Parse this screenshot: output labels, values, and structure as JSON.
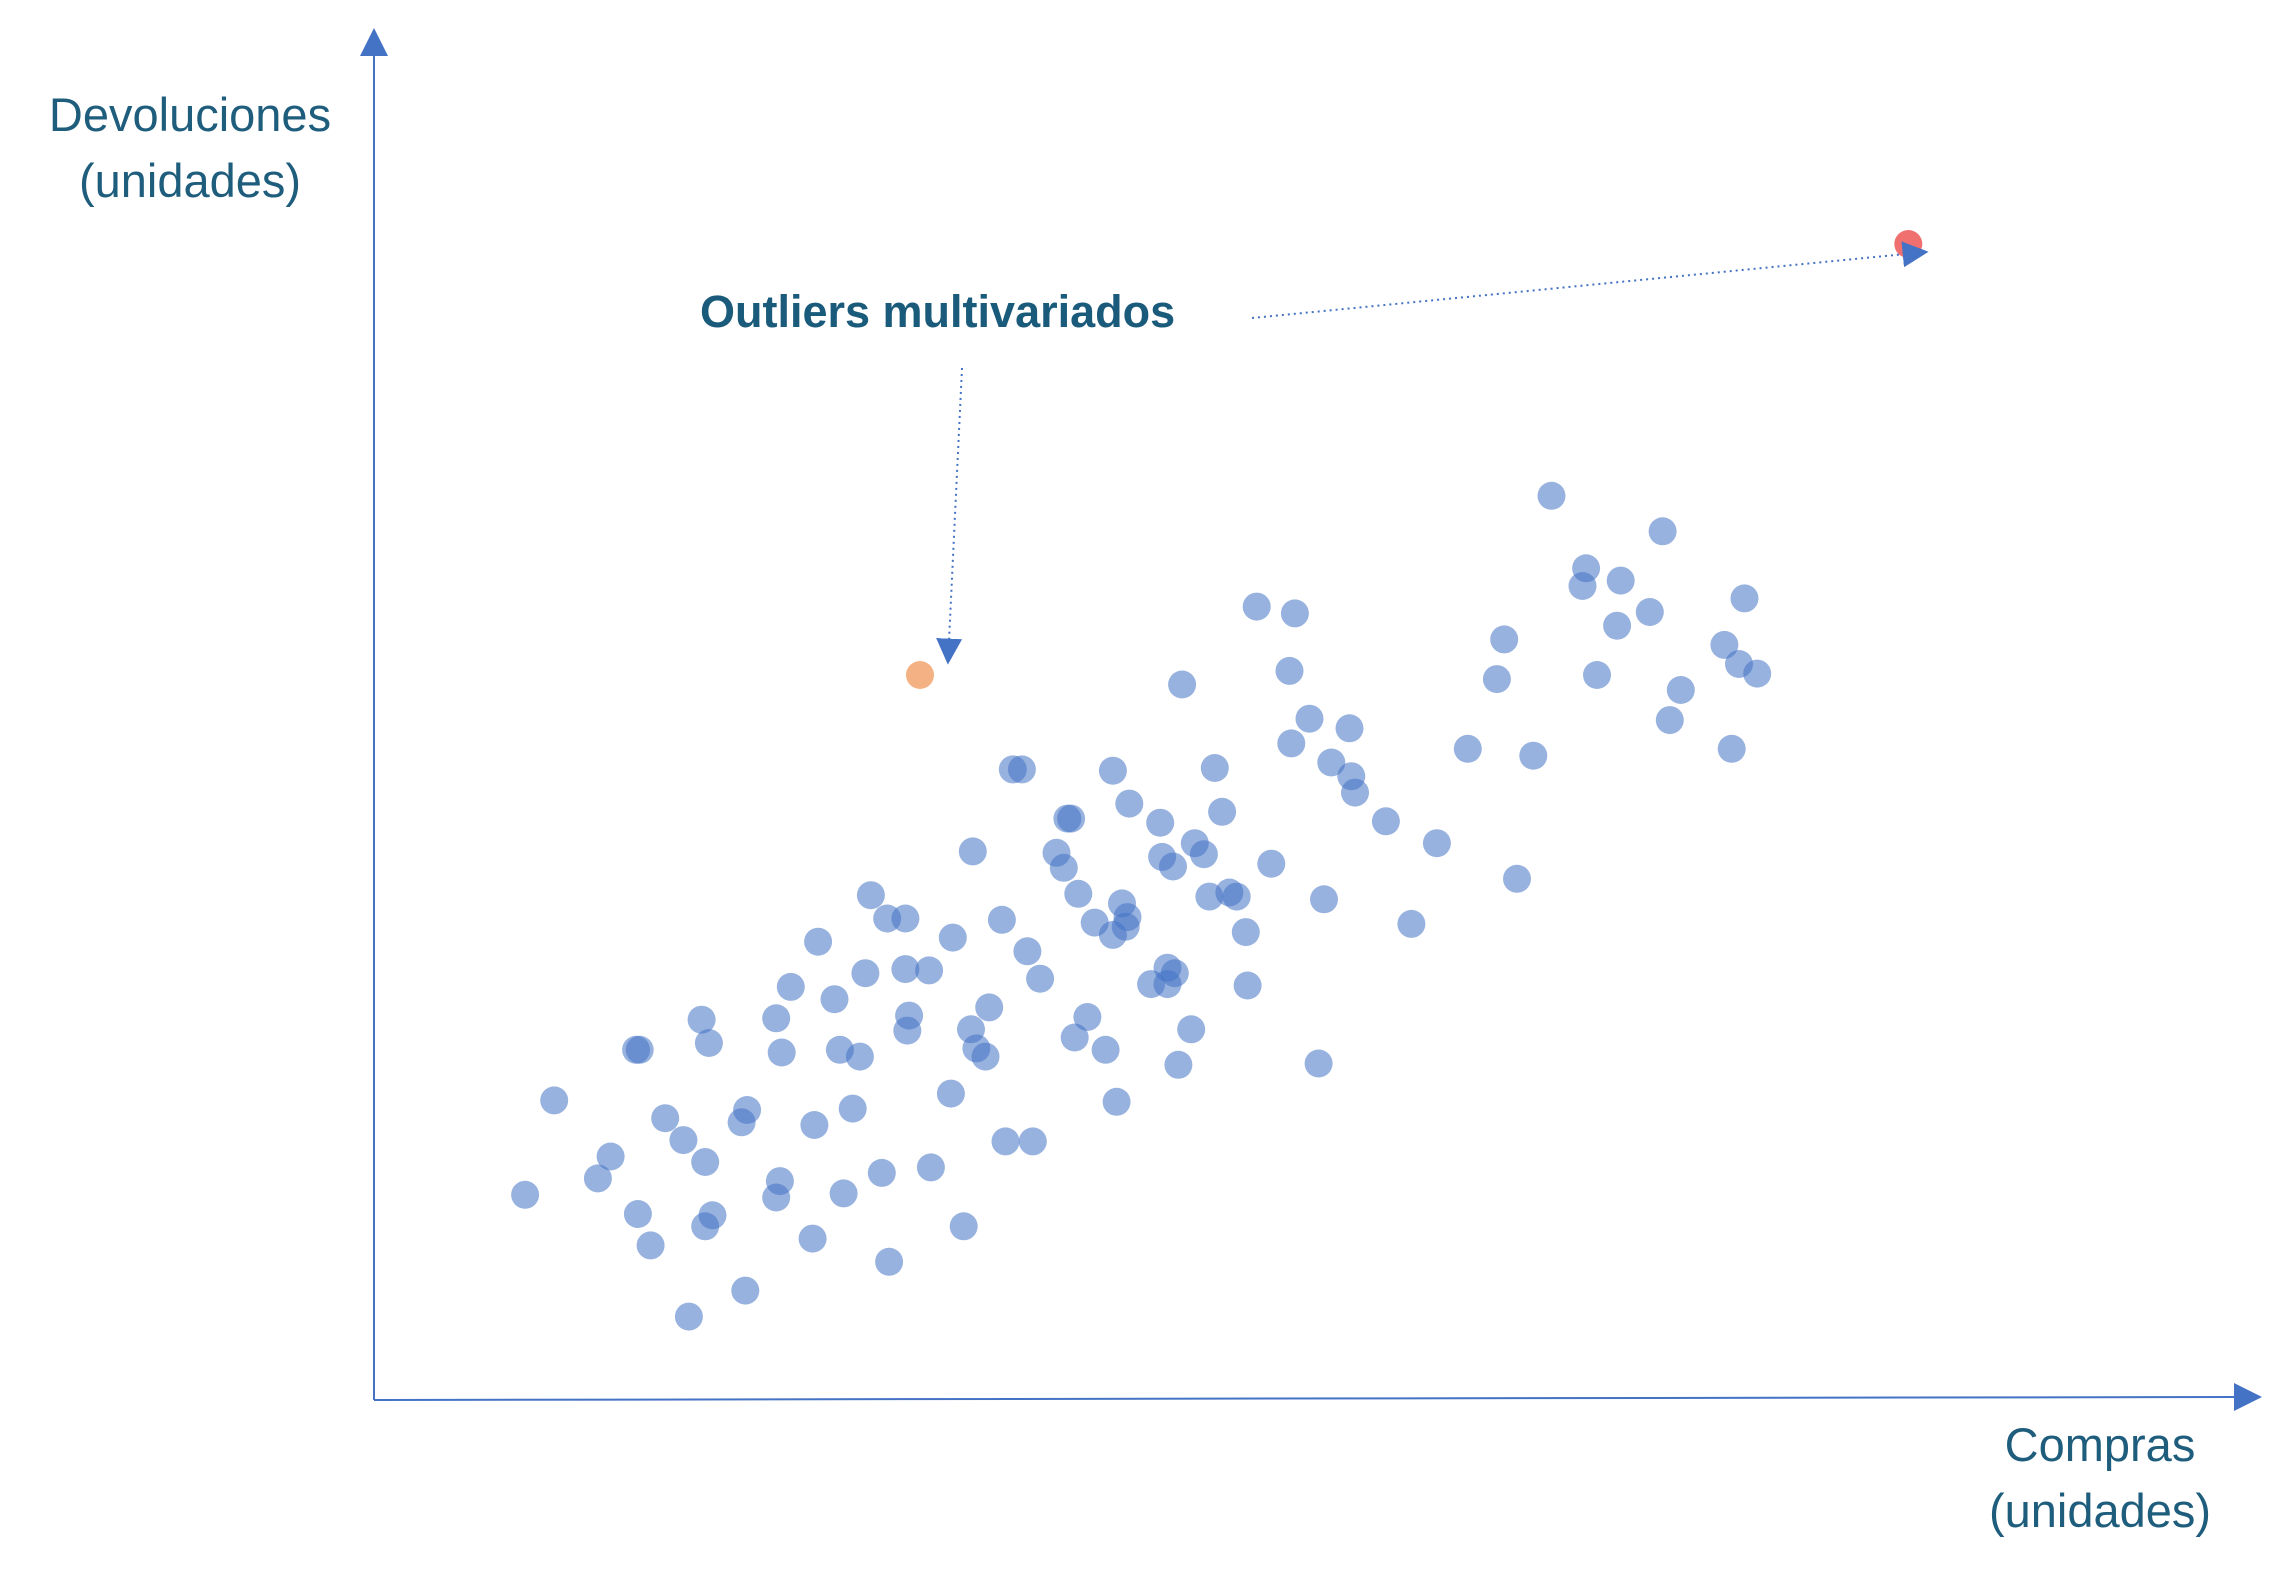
{
  "chart_data": {
    "type": "scatter",
    "title": "",
    "xlabel_lines": [
      "Compras",
      "(unidades)"
    ],
    "ylabel_lines": [
      "Devoluciones",
      "(unidades)"
    ],
    "xlim": [
      0,
      100
    ],
    "ylim": [
      0,
      100
    ],
    "grid": false,
    "axis_ticks": false,
    "colors": {
      "axis": "#4472c4",
      "points": "#4472c4",
      "outlier_high": "#f07070",
      "outlier_mid": "#f4b183",
      "annotation_text": "#1a5a7a",
      "label_text": "#1f5d7d"
    },
    "annotation": {
      "text": "Outliers multivariados",
      "points_to": [
        "outlier_mid",
        "outlier_high"
      ]
    },
    "series": [
      {
        "values": [
          [
            8.3,
            15.0
          ],
          [
            9.9,
            21.9
          ],
          [
            12.3,
            16.2
          ],
          [
            13.0,
            17.8
          ],
          [
            14.4,
            25.6
          ],
          [
            14.6,
            25.6
          ],
          [
            14.5,
            13.6
          ],
          [
            15.2,
            11.3
          ],
          [
            16.0,
            20.6
          ],
          [
            17.0,
            19.0
          ],
          [
            17.3,
            6.1
          ],
          [
            18.0,
            27.8
          ],
          [
            18.2,
            17.4
          ],
          [
            18.4,
            26.1
          ],
          [
            18.2,
            12.7
          ],
          [
            18.6,
            13.5
          ],
          [
            20.2,
            20.3
          ],
          [
            20.4,
            8.0
          ],
          [
            20.5,
            21.2
          ],
          [
            22.1,
            27.9
          ],
          [
            22.1,
            14.8
          ],
          [
            22.3,
            16.0
          ],
          [
            22.4,
            25.4
          ],
          [
            22.9,
            30.2
          ],
          [
            24.1,
            11.8
          ],
          [
            24.2,
            20.1
          ],
          [
            24.4,
            33.5
          ],
          [
            25.3,
            29.3
          ],
          [
            25.6,
            25.6
          ],
          [
            25.8,
            15.1
          ],
          [
            26.7,
            25.1
          ],
          [
            26.3,
            21.3
          ],
          [
            27.3,
            36.9
          ],
          [
            27.0,
            31.2
          ],
          [
            28.2,
            35.2
          ],
          [
            28.3,
            10.1
          ],
          [
            27.9,
            16.6
          ],
          [
            29.2,
            31.5
          ],
          [
            29.2,
            35.2
          ],
          [
            29.3,
            27.0
          ],
          [
            29.4,
            28.1
          ],
          [
            30.5,
            31.4
          ],
          [
            30.6,
            17.0
          ],
          [
            31.8,
            33.8
          ],
          [
            31.7,
            22.4
          ],
          [
            32.8,
            27.1
          ],
          [
            32.4,
            12.7
          ],
          [
            32.9,
            40.1
          ],
          [
            33.1,
            25.7
          ],
          [
            33.6,
            25.1
          ],
          [
            33.8,
            28.7
          ],
          [
            34.5,
            35.1
          ],
          [
            34.7,
            18.9
          ],
          [
            35.1,
            46.1
          ],
          [
            35.6,
            46.1
          ],
          [
            35.9,
            32.8
          ],
          [
            36.2,
            18.9
          ],
          [
            36.6,
            30.8
          ],
          [
            37.5,
            40.0
          ],
          [
            37.9,
            38.9
          ],
          [
            38.1,
            42.5
          ],
          [
            38.3,
            42.5
          ],
          [
            38.5,
            26.5
          ],
          [
            38.7,
            37.0
          ],
          [
            39.2,
            28.0
          ],
          [
            39.6,
            34.9
          ],
          [
            40.2,
            25.6
          ],
          [
            40.6,
            34.0
          ],
          [
            41.1,
            36.3
          ],
          [
            41.3,
            34.6
          ],
          [
            40.6,
            46.0
          ],
          [
            40.8,
            21.8
          ],
          [
            41.4,
            35.3
          ],
          [
            41.5,
            43.6
          ],
          [
            42.7,
            30.4
          ],
          [
            43.2,
            42.2
          ],
          [
            43.3,
            39.7
          ],
          [
            43.6,
            31.6
          ],
          [
            43.6,
            30.4
          ],
          [
            43.9,
            39.0
          ],
          [
            44.0,
            31.2
          ],
          [
            44.4,
            52.3
          ],
          [
            45.1,
            40.7
          ],
          [
            44.2,
            24.5
          ],
          [
            44.9,
            27.1
          ],
          [
            45.6,
            39.9
          ],
          [
            45.9,
            36.8
          ],
          [
            46.2,
            46.2
          ],
          [
            46.6,
            43.0
          ],
          [
            47.0,
            37.1
          ],
          [
            47.4,
            36.8
          ],
          [
            47.9,
            34.2
          ],
          [
            48.0,
            30.3
          ],
          [
            48.5,
            58.0
          ],
          [
            49.3,
            39.2
          ],
          [
            50.3,
            53.3
          ],
          [
            50.6,
            57.5
          ],
          [
            50.4,
            48.0
          ],
          [
            51.4,
            49.8
          ],
          [
            51.9,
            24.6
          ],
          [
            52.2,
            36.6
          ],
          [
            53.6,
            49.1
          ],
          [
            52.6,
            46.6
          ],
          [
            53.9,
            44.4
          ],
          [
            53.7,
            45.6
          ],
          [
            55.6,
            42.3
          ],
          [
            57.0,
            34.8
          ],
          [
            58.4,
            40.7
          ],
          [
            60.1,
            47.6
          ],
          [
            61.7,
            52.7
          ],
          [
            62.1,
            55.6
          ],
          [
            62.8,
            38.1
          ],
          [
            63.7,
            47.1
          ],
          [
            64.7,
            66.1
          ],
          [
            66.4,
            59.5
          ],
          [
            66.6,
            60.8
          ],
          [
            67.2,
            53.0
          ],
          [
            68.3,
            56.6
          ],
          [
            68.5,
            59.9
          ],
          [
            70.1,
            57.6
          ],
          [
            70.8,
            63.5
          ],
          [
            71.2,
            49.7
          ],
          [
            71.8,
            51.9
          ],
          [
            74.2,
            55.2
          ],
          [
            75.0,
            53.8
          ],
          [
            74.6,
            47.6
          ],
          [
            76.0,
            53.1
          ],
          [
            75.3,
            58.6
          ]
        ]
      },
      {
        "name": "outlier_mid",
        "values": [
          [
            30.0,
            53.0
          ]
        ]
      },
      {
        "name": "outlier_high",
        "values": [
          [
            84.3,
            84.5
          ]
        ]
      }
    ]
  }
}
